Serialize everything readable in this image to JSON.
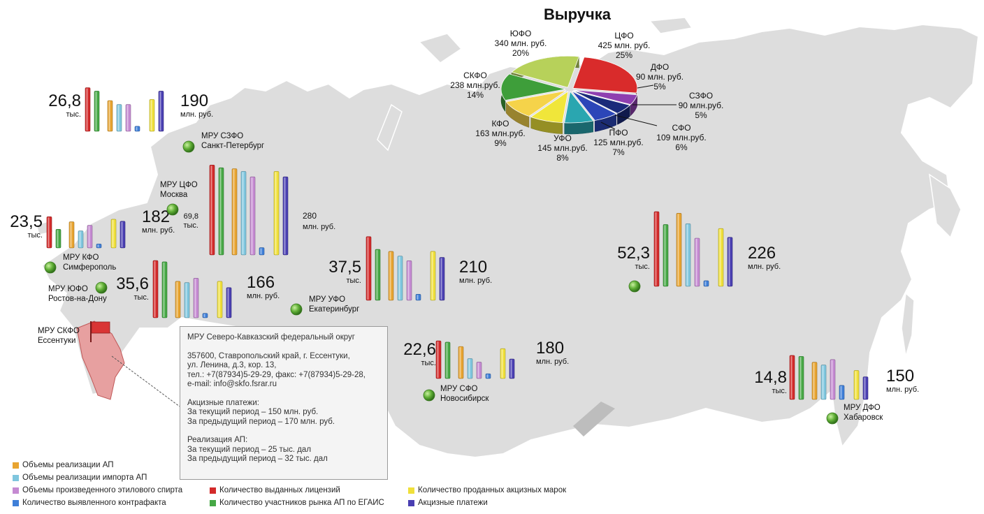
{
  "title": "Выручка",
  "pie": {
    "slices": [
      {
        "id": "cfo",
        "name": "ЦФО",
        "amount": "425 млн. руб.",
        "percent": "25%",
        "value": 425,
        "color": "#d92b2b"
      },
      {
        "id": "dfo",
        "name": "ДФО",
        "amount": "90 млн. руб.",
        "percent": "5%",
        "value": 90,
        "color": "#8e3fb0"
      },
      {
        "id": "szfo",
        "name": "СЗФО",
        "amount": "90 млн.руб.",
        "percent": "5%",
        "value": 90,
        "color": "#1a2a7a"
      },
      {
        "id": "sfo",
        "name": "СФО",
        "amount": "109 млн.руб.",
        "percent": "6%",
        "value": 109,
        "color": "#2c46b8"
      },
      {
        "id": "pfo",
        "name": "ПФО",
        "amount": "125 млн.руб.",
        "percent": "7%",
        "value": 125,
        "color": "#2aa6b0"
      },
      {
        "id": "ufo_u",
        "name": "УФО",
        "amount": "145 млн.руб.",
        "percent": "8%",
        "value": 145,
        "color": "#f0e63a"
      },
      {
        "id": "kfo",
        "name": "КФО",
        "amount": "163 млн.руб.",
        "percent": "9%",
        "value": 163,
        "color": "#f5d34a"
      },
      {
        "id": "skfo",
        "name": "СКФО",
        "amount": "238 млн.руб.",
        "percent": "14%",
        "value": 238,
        "color": "#3e9e3a"
      },
      {
        "id": "yufo",
        "name": "ЮФО",
        "amount": "340 млн. руб.",
        "percent": "20%",
        "value": 340,
        "color": "#b7d15a"
      }
    ]
  },
  "series_colors": {
    "licenses": "#d32a2a",
    "participants": "#46a845",
    "realization": "#e8a430",
    "import": "#7fc6de",
    "spirit": "#c58ad2",
    "counterfeit": "#3f7fd8",
    "stamps": "#f0e03a",
    "excise": "#4a3fb2"
  },
  "regions": [
    {
      "id": "szfo",
      "office": "МРУ СЗФО",
      "city": "Санкт-Петербург",
      "lic": "26,8",
      "lic_unit": "тыс.",
      "rev": "190",
      "rev_unit": "млн. руб.",
      "bars": [
        0.78,
        0.72,
        0.55,
        0.48,
        0.48,
        0.09,
        0.57,
        0.72
      ]
    },
    {
      "id": "cfo",
      "office": "МРУ ЦФО",
      "city": "Москва",
      "lic": "69,8",
      "lic_unit": "тыс.",
      "rev": "280",
      "rev_unit": "млн. руб.",
      "bars": [
        0.99,
        0.96,
        0.95,
        0.92,
        0.86,
        0.08,
        0.92,
        0.86
      ]
    },
    {
      "id": "kfo",
      "office": "МРУ КФО",
      "city": "Симферополь",
      "lic": "23,5",
      "lic_unit": "тыс.",
      "rev": "182",
      "rev_unit": "млн. руб.",
      "bars": [
        0.62,
        0.37,
        0.52,
        0.34,
        0.45,
        0.08,
        0.57,
        0.53
      ]
    },
    {
      "id": "yufo",
      "office": "МРУ ЮФО",
      "city": "Ростов-на-Дону",
      "lic": "35,6",
      "lic_unit": "тыс.",
      "rev": "166",
      "rev_unit": "млн. руб.",
      "bars": [
        0.91,
        0.89,
        0.58,
        0.56,
        0.63,
        0.07,
        0.58,
        0.48
      ]
    },
    {
      "id": "ufo",
      "office": "МРУ УФО",
      "city": "Екатеринбург",
      "lic": "37,5",
      "lic_unit": "тыс.",
      "rev": "210",
      "rev_unit": "млн. руб.",
      "bars": [
        0.95,
        0.76,
        0.73,
        0.66,
        0.59,
        0.09,
        0.73,
        0.64
      ]
    },
    {
      "id": "sfo",
      "office": "МРУ СФО",
      "city": "Новосибирск",
      "lic": "22,6",
      "lic_unit": "тыс.",
      "rev": "180",
      "rev_unit": "млн. руб.",
      "bars": [
        0.87,
        0.84,
        0.74,
        0.46,
        0.38,
        0.11,
        0.69,
        0.45
      ]
    },
    {
      "id": "sfo2",
      "office": "",
      "city": "",
      "lic": "52,3",
      "lic_unit": "тыс.",
      "rev": "226",
      "rev_unit": "млн. руб.",
      "bars": [
        0.93,
        0.77,
        0.91,
        0.78,
        0.6,
        0.07,
        0.72,
        0.61
      ]
    },
    {
      "id": "dfo",
      "office": "МРУ ДФО",
      "city": "Хабаровск",
      "lic": "14,8",
      "lic_unit": "тыс.",
      "rev": "150",
      "rev_unit": "млн. руб.",
      "bars": [
        0.97,
        0.95,
        0.82,
        0.76,
        0.88,
        0.31,
        0.64,
        0.5
      ]
    }
  ],
  "skfo": {
    "office": "МРУ СКФО",
    "city": "Ессентуки"
  },
  "infobox": {
    "title": "МРУ Северо-Кавказский федеральный округ",
    "addr1": "357600, Ставропольский край, г. Ессентуки,",
    "addr2": "ул. Ленина, д.3, кор. 13,",
    "phones": "тел.: +7(87934)5-29-29, факс: +7(87934)5-29-28,",
    "email": "e-mail: info@skfo.fsrar.ru",
    "excise_h": "Акцизные платежи:",
    "excise_cur": "За текущий период – 150 млн. руб.",
    "excise_prev": "За предыдущий период – 170 млн. руб.",
    "real_h": "Реализация АП:",
    "real_cur": "За текущий период – 25 тыс. дал",
    "real_prev": "За предыдущий период – 32 тыс. дал"
  },
  "legend": {
    "realization": "Объемы реализации АП",
    "import": "Объемы реализации импорта АП",
    "spirit": "Объемы произведенного этилового спирта",
    "counterfeit": "Количество выявленного контрафакта",
    "licenses": "Количество выданных лицензий",
    "participants": "Количество участников рынка АП по ЕГАИС",
    "stamps": "Количество проданных акцизных марок",
    "excise": "Акцизные платежи"
  }
}
